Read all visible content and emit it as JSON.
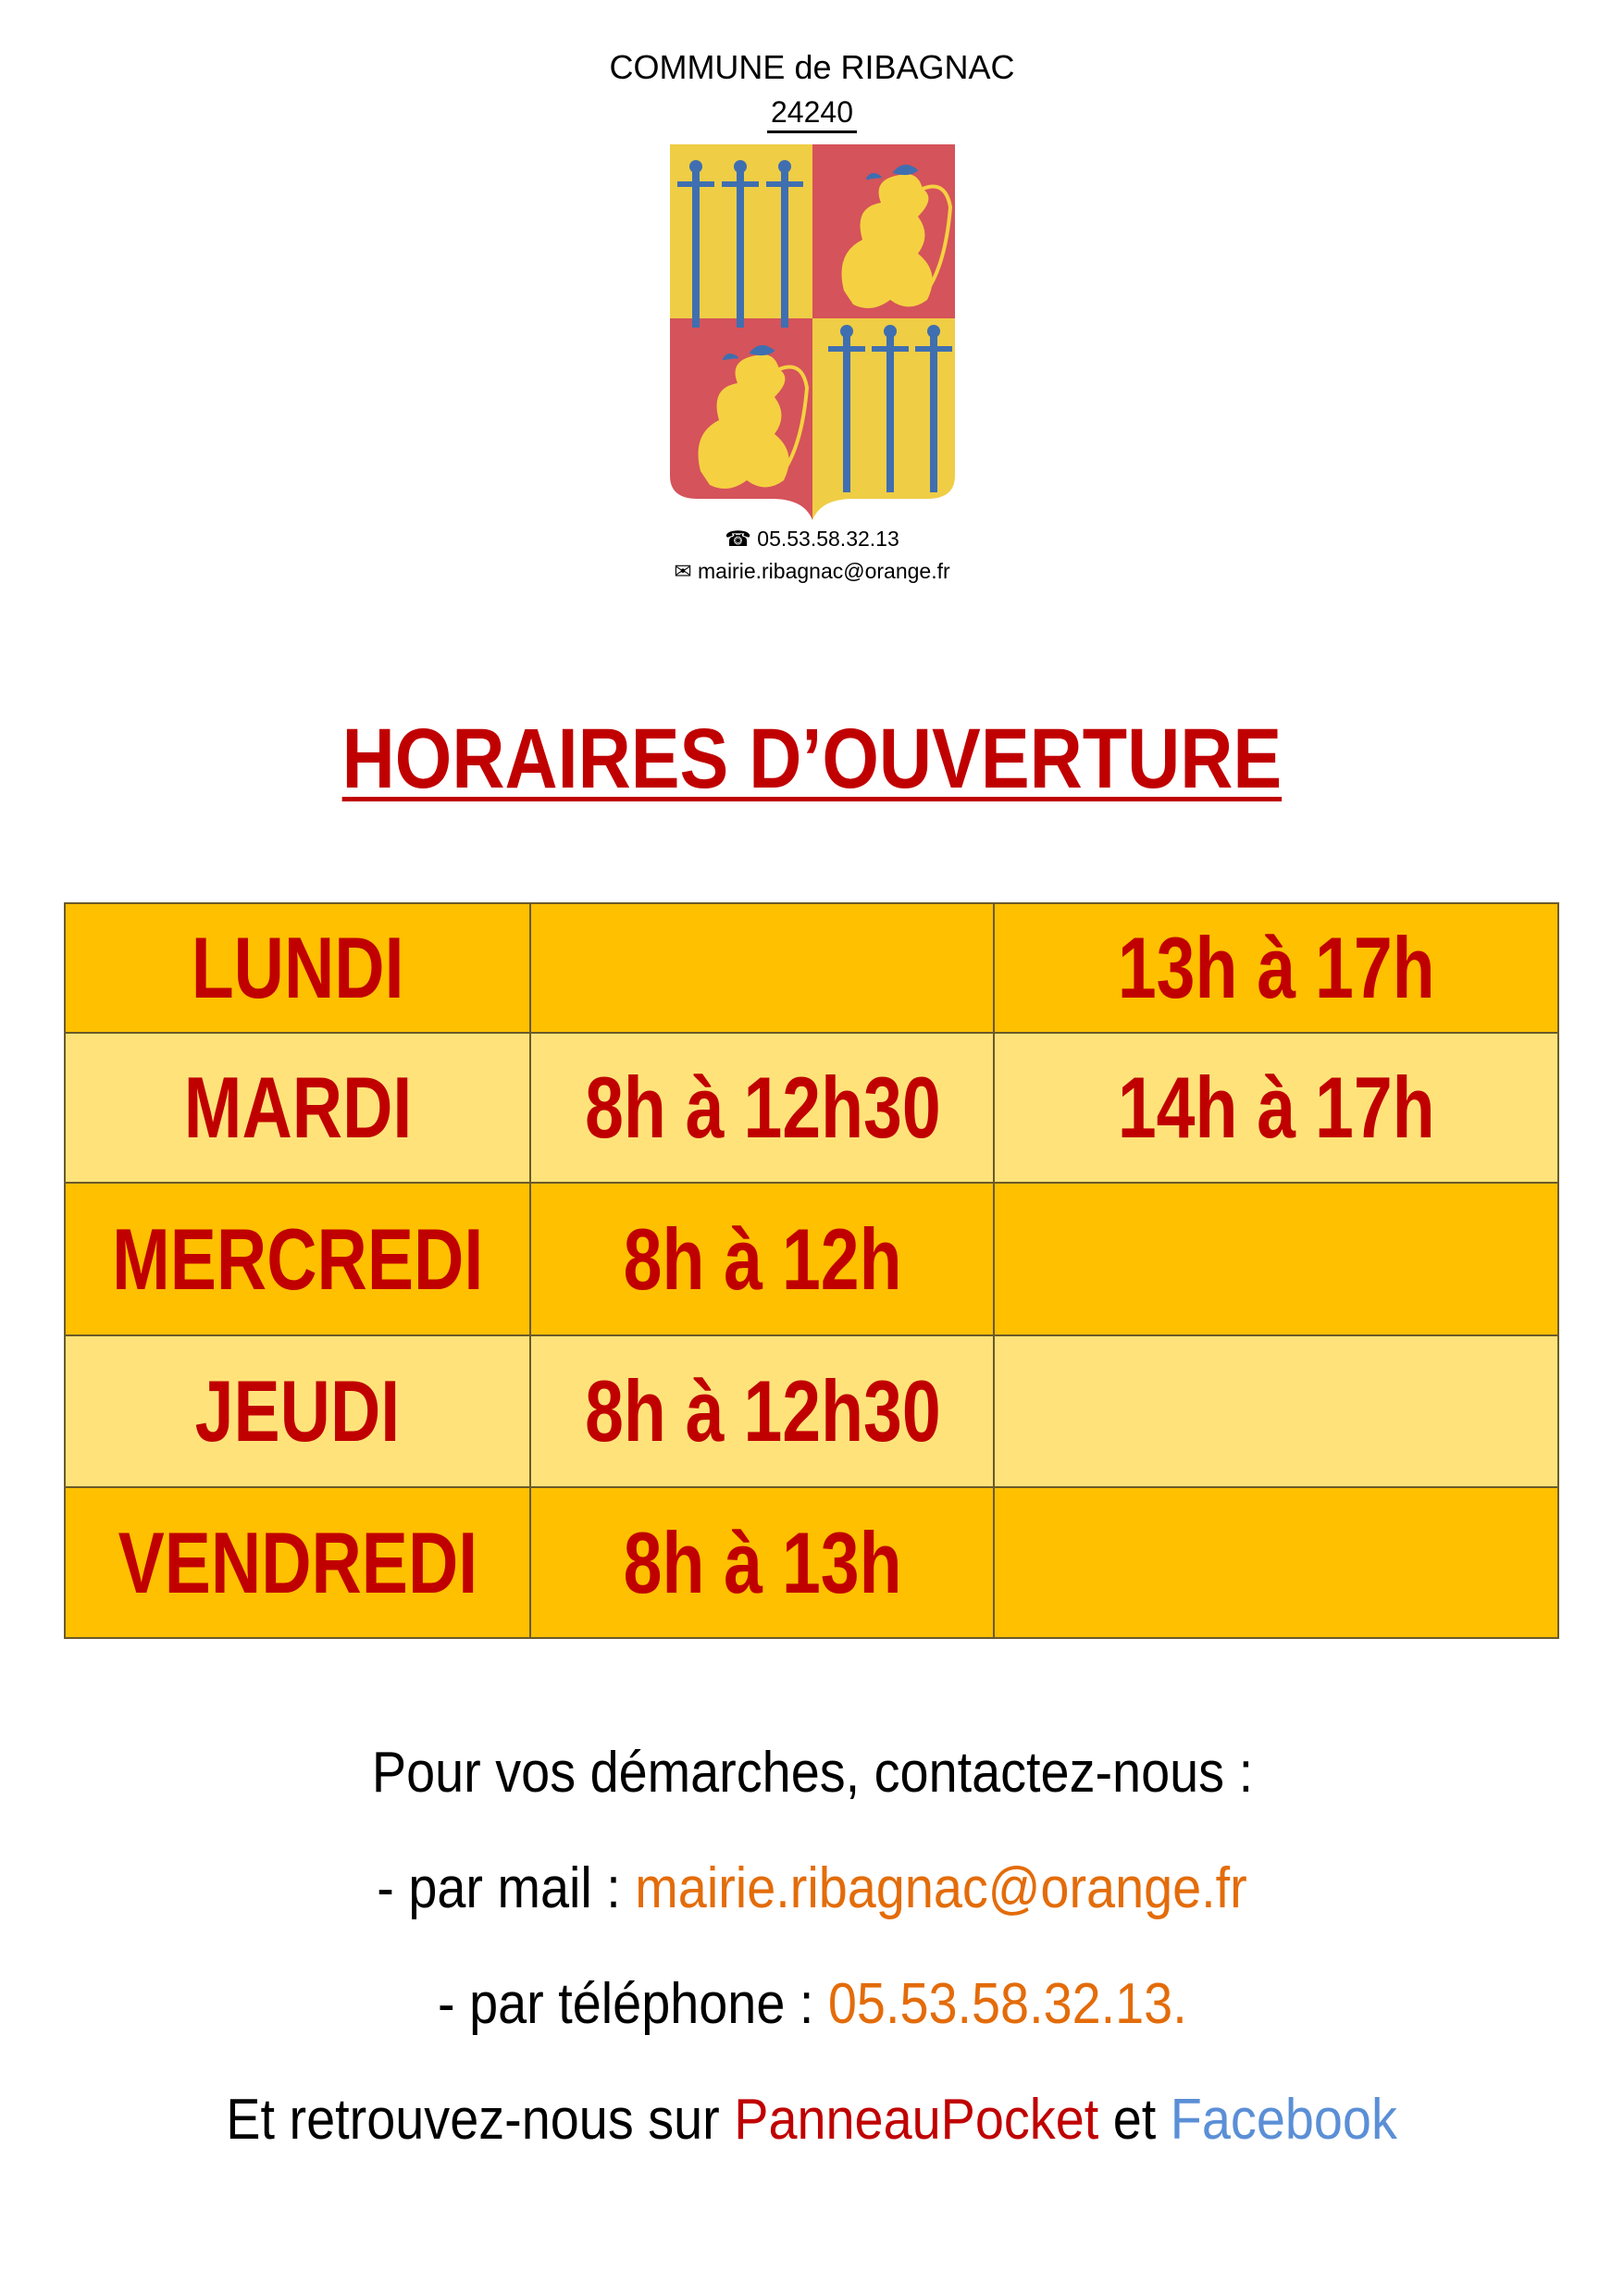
{
  "header": {
    "commune": "COMMUNE de RIBAGNAC",
    "postal_code": "24240",
    "phone": "05.53.58.32.13",
    "email": "mairie.ribagnac@orange.fr",
    "phone_icon": "telephone-icon",
    "email_icon": "envelope-icon",
    "crest": "coat-of-arms-swords-and-lions"
  },
  "title": "HORAIRES D’OUVERTURE",
  "schedule": {
    "colors": {
      "dark_row": "#ffc000",
      "light_row": "#ffe37a",
      "text": "#c00000"
    },
    "rows": [
      {
        "day": "LUNDI",
        "morning": "",
        "afternoon": "13h à 17h"
      },
      {
        "day": "MARDI",
        "morning": "8h à 12h30",
        "afternoon": "14h à 17h"
      },
      {
        "day": "MERCREDI",
        "morning": "8h à 12h",
        "afternoon": ""
      },
      {
        "day": "JEUDI",
        "morning": "8h à 12h30",
        "afternoon": ""
      },
      {
        "day": "VENDREDI",
        "morning": "8h à 13h",
        "afternoon": ""
      }
    ]
  },
  "contact": {
    "intro": "Pour vos démarches, contactez-nous :",
    "mail_label": "- par mail : ",
    "mail_value": "mairie.ribagnac@orange.fr",
    "phone_label": "- par téléphone : ",
    "phone_value": "05.53.58.32.13.",
    "find_us_prefix": "Et retrouvez-nous sur ",
    "panneaupocket": "PanneauPocket",
    "and": " et ",
    "facebook": "Facebook",
    "colors": {
      "orange": "#e36c0a",
      "red": "#c00000",
      "blue": "#5b8fd6"
    }
  }
}
